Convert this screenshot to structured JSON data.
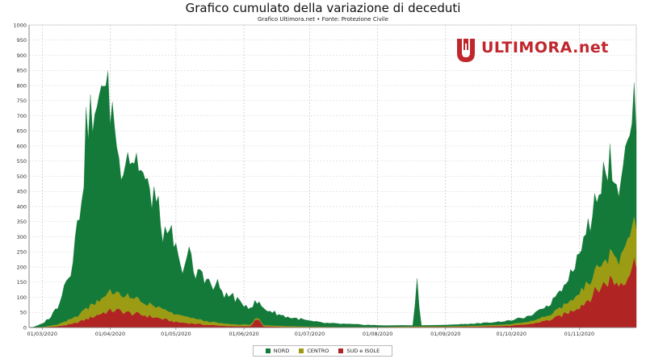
{
  "header": {
    "title": "Grafico cumulato della variazione di deceduti",
    "subtitle": "Grafico Ultimora.net • Fonte: Protezione Civile"
  },
  "logo": {
    "text": "ULTIMORA.net",
    "color": "#c0272d"
  },
  "colors": {
    "nord": "#147a3a",
    "centro": "#9c9c14",
    "sud": "#b12424"
  },
  "chart_data": {
    "type": "area",
    "stacked": true,
    "ylim": [
      0,
      1000
    ],
    "yticks": [
      0,
      50,
      100,
      150,
      200,
      250,
      300,
      350,
      400,
      450,
      500,
      550,
      600,
      650,
      700,
      750,
      800,
      850,
      900,
      950,
      1000
    ],
    "xticks": [
      "01/03/2020",
      "01/04/2020",
      "01/05/2020",
      "01/06/2020",
      "01/07/2020",
      "01/08/2020",
      "01/09/2020",
      "01/10/2020",
      "01/11/2020"
    ],
    "grid": true,
    "legend_position": "bottom",
    "series": [
      {
        "name": "SUD e ISOLE",
        "key": "sud",
        "points": [
          [
            "2020-02-24",
            0
          ],
          [
            "2020-03-01",
            1
          ],
          [
            "2020-03-08",
            4
          ],
          [
            "2020-03-15",
            12
          ],
          [
            "2020-03-22",
            30
          ],
          [
            "2020-03-29",
            50
          ],
          [
            "2020-04-03",
            58
          ],
          [
            "2020-04-10",
            48
          ],
          [
            "2020-04-17",
            40
          ],
          [
            "2020-04-24",
            30
          ],
          [
            "2020-05-01",
            18
          ],
          [
            "2020-05-08",
            14
          ],
          [
            "2020-05-15",
            9
          ],
          [
            "2020-05-22",
            6
          ],
          [
            "2020-05-29",
            4
          ],
          [
            "2020-06-04",
            5
          ],
          [
            "2020-06-07",
            30
          ],
          [
            "2020-06-10",
            4
          ],
          [
            "2020-06-20",
            2
          ],
          [
            "2020-07-01",
            1
          ],
          [
            "2020-07-15",
            1
          ],
          [
            "2020-08-01",
            1
          ],
          [
            "2020-08-19",
            2
          ],
          [
            "2020-09-01",
            2
          ],
          [
            "2020-09-15",
            3
          ],
          [
            "2020-10-01",
            6
          ],
          [
            "2020-10-10",
            12
          ],
          [
            "2020-10-20",
            28
          ],
          [
            "2020-10-27",
            50
          ],
          [
            "2020-11-03",
            80
          ],
          [
            "2020-11-10",
            130
          ],
          [
            "2020-11-15",
            160
          ],
          [
            "2020-11-19",
            145
          ],
          [
            "2020-11-23",
            175
          ],
          [
            "2020-11-27",
            225
          ]
        ]
      },
      {
        "name": "CENTRO",
        "key": "centro",
        "points": [
          [
            "2020-02-24",
            0
          ],
          [
            "2020-03-01",
            1
          ],
          [
            "2020-03-08",
            6
          ],
          [
            "2020-03-15",
            18
          ],
          [
            "2020-03-22",
            38
          ],
          [
            "2020-03-29",
            55
          ],
          [
            "2020-04-03",
            60
          ],
          [
            "2020-04-10",
            50
          ],
          [
            "2020-04-17",
            42
          ],
          [
            "2020-04-24",
            32
          ],
          [
            "2020-05-01",
            25
          ],
          [
            "2020-05-08",
            18
          ],
          [
            "2020-05-15",
            12
          ],
          [
            "2020-05-22",
            8
          ],
          [
            "2020-05-29",
            6
          ],
          [
            "2020-06-10",
            4
          ],
          [
            "2020-06-20",
            3
          ],
          [
            "2020-07-01",
            2
          ],
          [
            "2020-07-15",
            1
          ],
          [
            "2020-08-01",
            1
          ],
          [
            "2020-08-19",
            2
          ],
          [
            "2020-09-01",
            2
          ],
          [
            "2020-09-15",
            3
          ],
          [
            "2020-10-01",
            5
          ],
          [
            "2020-10-10",
            8
          ],
          [
            "2020-10-20",
            18
          ],
          [
            "2020-10-27",
            35
          ],
          [
            "2020-11-03",
            55
          ],
          [
            "2020-11-10",
            75
          ],
          [
            "2020-11-15",
            90
          ],
          [
            "2020-11-19",
            80
          ],
          [
            "2020-11-23",
            120
          ],
          [
            "2020-11-27",
            135
          ]
        ]
      },
      {
        "name": "NORD",
        "key": "nord",
        "points": [
          [
            "2020-02-24",
            0
          ],
          [
            "2020-02-26",
            1
          ],
          [
            "2020-03-01",
            10
          ],
          [
            "2020-03-05",
            30
          ],
          [
            "2020-03-08",
            60
          ],
          [
            "2020-03-11",
            120
          ],
          [
            "2020-03-14",
            170
          ],
          [
            "2020-03-17",
            290
          ],
          [
            "2020-03-20",
            470
          ],
          [
            "2020-03-22",
            660
          ],
          [
            "2020-03-24",
            590
          ],
          [
            "2020-03-26",
            570
          ],
          [
            "2020-03-28",
            800
          ],
          [
            "2020-03-30",
            650
          ],
          [
            "2020-04-01",
            620
          ],
          [
            "2020-04-03",
            580
          ],
          [
            "2020-04-05",
            420
          ],
          [
            "2020-04-07",
            480
          ],
          [
            "2020-04-09",
            480
          ],
          [
            "2020-04-11",
            470
          ],
          [
            "2020-04-14",
            450
          ],
          [
            "2020-04-17",
            400
          ],
          [
            "2020-04-19",
            350
          ],
          [
            "2020-04-21",
            380
          ],
          [
            "2020-04-23",
            310
          ],
          [
            "2020-04-25",
            260
          ],
          [
            "2020-04-27",
            220
          ],
          [
            "2020-04-29",
            260
          ],
          [
            "2020-05-01",
            210
          ],
          [
            "2020-05-03",
            150
          ],
          [
            "2020-05-05",
            180
          ],
          [
            "2020-05-07",
            210
          ],
          [
            "2020-05-10",
            130
          ],
          [
            "2020-05-12",
            170
          ],
          [
            "2020-05-15",
            140
          ],
          [
            "2020-05-18",
            110
          ],
          [
            "2020-05-20",
            125
          ],
          [
            "2020-05-24",
            90
          ],
          [
            "2020-05-27",
            95
          ],
          [
            "2020-05-30",
            70
          ],
          [
            "2020-06-03",
            62
          ],
          [
            "2020-06-07",
            50
          ],
          [
            "2020-06-10",
            55
          ],
          [
            "2020-06-14",
            45
          ],
          [
            "2020-06-18",
            35
          ],
          [
            "2020-06-22",
            28
          ],
          [
            "2020-06-26",
            25
          ],
          [
            "2020-07-01",
            18
          ],
          [
            "2020-07-08",
            12
          ],
          [
            "2020-07-15",
            10
          ],
          [
            "2020-07-22",
            8
          ],
          [
            "2020-07-29",
            6
          ],
          [
            "2020-08-05",
            4
          ],
          [
            "2020-08-12",
            4
          ],
          [
            "2020-08-17",
            3
          ],
          [
            "2020-08-19",
            140
          ],
          [
            "2020-08-21",
            3
          ],
          [
            "2020-08-30",
            4
          ],
          [
            "2020-09-10",
            6
          ],
          [
            "2020-09-20",
            8
          ],
          [
            "2020-10-01",
            12
          ],
          [
            "2020-10-10",
            18
          ],
          [
            "2020-10-18",
            35
          ],
          [
            "2020-10-24",
            60
          ],
          [
            "2020-10-30",
            110
          ],
          [
            "2020-11-04",
            170
          ],
          [
            "2020-11-09",
            240
          ],
          [
            "2020-11-13",
            330
          ],
          [
            "2020-11-16",
            280
          ],
          [
            "2020-11-19",
            240
          ],
          [
            "2020-11-21",
            300
          ],
          [
            "2020-11-23",
            300
          ],
          [
            "2020-11-25",
            360
          ],
          [
            "2020-11-27",
            390
          ]
        ]
      }
    ]
  },
  "legend": [
    {
      "label": "NORD",
      "key": "nord"
    },
    {
      "label": "CENTRO",
      "key": "centro"
    },
    {
      "label": "SUD e ISOLE",
      "key": "sud"
    }
  ]
}
